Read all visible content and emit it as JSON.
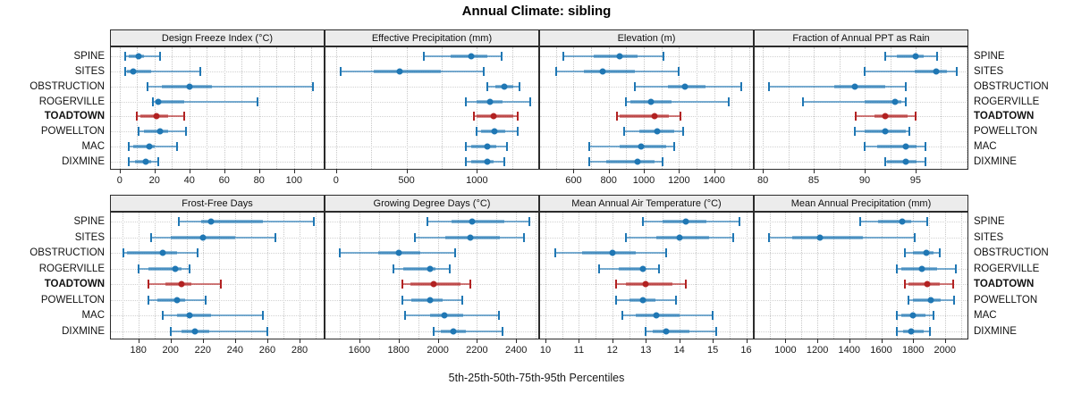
{
  "title": "Annual Climate: sibling",
  "caption": "5th-25th-50th-75th-95th Percentiles",
  "stations": [
    "SPINE",
    "SITES",
    "OBSTRUCTION",
    "ROGERVILLE",
    "TOADTOWN",
    "POWELLTON",
    "MAC",
    "DIXMINE"
  ],
  "highlight_station": "TOADTOWN",
  "percentile_labels": [
    "5th",
    "25th",
    "50th",
    "75th",
    "95th"
  ],
  "colors": {
    "series_blue": "#1f77b4",
    "highlight_red": "#b22222",
    "strip_bg": "#ececec",
    "panel_border": "#2b2b2b",
    "gridline": "#c8c8c8"
  },
  "chart_data": [
    {
      "type": "dot-interval",
      "title": "Design Freeze Index (°C)",
      "xlim": [
        -5,
        117
      ],
      "ticks": [
        0,
        20,
        40,
        60,
        80,
        100
      ],
      "values": [
        [
          3,
          5,
          11,
          14,
          23
        ],
        [
          3,
          4,
          8,
          18,
          46
        ],
        [
          16,
          24,
          40,
          53,
          111
        ],
        [
          19,
          21,
          22,
          37,
          79
        ],
        [
          10,
          12,
          21,
          28,
          37
        ],
        [
          11,
          14,
          23,
          28,
          38
        ],
        [
          5,
          8,
          17,
          20,
          33
        ],
        [
          5,
          9,
          15,
          18,
          22
        ]
      ]
    },
    {
      "type": "dot-interval",
      "title": "Effective Precipitation (mm)",
      "xlim": [
        -75,
        1435
      ],
      "ticks": [
        0,
        500,
        1000
      ],
      "values": [
        [
          620,
          810,
          960,
          1070,
          1175
        ],
        [
          30,
          270,
          450,
          745,
          1050
        ],
        [
          1070,
          1130,
          1195,
          1260,
          1300
        ],
        [
          920,
          995,
          1095,
          1185,
          1375
        ],
        [
          975,
          995,
          1120,
          1255,
          1290
        ],
        [
          1000,
          1030,
          1125,
          1200,
          1290
        ],
        [
          920,
          960,
          1075,
          1140,
          1215
        ],
        [
          920,
          960,
          1070,
          1120,
          1195
        ]
      ]
    },
    {
      "type": "dot-interval",
      "title": "Elevation (m)",
      "xlim": [
        410,
        1620
      ],
      "ticks": [
        600,
        800,
        1000,
        1200,
        1400
      ],
      "values": [
        [
          540,
          715,
          860,
          965,
          1110
        ],
        [
          500,
          660,
          765,
          950,
          1200
        ],
        [
          950,
          1135,
          1235,
          1350,
          1555
        ],
        [
          900,
          925,
          1040,
          1160,
          1480
        ],
        [
          845,
          860,
          1060,
          1140,
          1210
        ],
        [
          890,
          975,
          1075,
          1175,
          1225
        ],
        [
          690,
          860,
          985,
          1125,
          1170
        ],
        [
          690,
          785,
          965,
          1060,
          1105
        ]
      ]
    },
    {
      "type": "dot-interval",
      "title": "Fraction of Annual PPT as Rain",
      "xlim": [
        79.2,
        100.1
      ],
      "ticks": [
        80,
        85,
        90,
        95
      ],
      "values": [
        [
          92,
          93.2,
          95,
          95.8,
          97.1
        ],
        [
          90,
          94.9,
          97,
          98.1,
          99
        ],
        [
          80.6,
          87,
          89,
          92,
          94
        ],
        [
          83.9,
          90,
          93,
          93.6,
          94
        ],
        [
          89.1,
          91,
          92,
          94.2,
          95
        ],
        [
          89,
          90,
          92,
          94,
          94.4
        ],
        [
          90,
          91.2,
          94,
          95.1,
          96
        ],
        [
          92,
          92.2,
          94,
          95.1,
          96
        ]
      ]
    },
    {
      "type": "dot-interval",
      "title": "Frost-Free Days",
      "xlim": [
        163,
        295
      ],
      "ticks": [
        180,
        200,
        220,
        240,
        260,
        280
      ],
      "values": [
        [
          205,
          219,
          225,
          257,
          289
        ],
        [
          188,
          200,
          220,
          240,
          265
        ],
        [
          171,
          173,
          195,
          204,
          217
        ],
        [
          180,
          186,
          203,
          207,
          212
        ],
        [
          186,
          197,
          207,
          213,
          231
        ],
        [
          186,
          192,
          204,
          209,
          222
        ],
        [
          195,
          204,
          212,
          225,
          257
        ],
        [
          200,
          207,
          215,
          224,
          260
        ]
      ]
    },
    {
      "type": "dot-interval",
      "title": "Growing Degree Days (°C)",
      "xlim": [
        1427,
        2513
      ],
      "ticks": [
        1600,
        1800,
        2000,
        2200,
        2400
      ],
      "values": [
        [
          1947,
          2068,
          2174,
          2340,
          2465
        ],
        [
          1882,
          2038,
          2166,
          2317,
          2441
        ],
        [
          1500,
          1695,
          1800,
          1910,
          2090
        ],
        [
          1775,
          1825,
          1960,
          1990,
          2060
        ],
        [
          1820,
          1860,
          1980,
          2115,
          2165
        ],
        [
          1820,
          1865,
          1960,
          2025,
          2125
        ],
        [
          1835,
          1960,
          2035,
          2130,
          2310
        ],
        [
          1980,
          2015,
          2080,
          2145,
          2330
        ]
      ]
    },
    {
      "type": "dot-interval",
      "title": "Mean Annual Air Temperature (°C)",
      "xlim": [
        9.84,
        16.2
      ],
      "ticks": [
        10,
        11,
        12,
        13,
        14,
        15,
        16
      ],
      "values": [
        [
          12.9,
          13.5,
          14.2,
          14.8,
          15.8
        ],
        [
          12.4,
          13.3,
          14.0,
          14.9,
          15.6
        ],
        [
          10.3,
          11.1,
          12.0,
          12.7,
          13.6
        ],
        [
          11.6,
          12.2,
          12.9,
          13.0,
          13.4
        ],
        [
          12.1,
          12.4,
          13.0,
          13.8,
          14.2
        ],
        [
          12.1,
          12.5,
          12.9,
          13.3,
          13.9
        ],
        [
          12.3,
          12.7,
          13.3,
          14.0,
          15.0
        ],
        [
          13.0,
          13.2,
          13.6,
          14.3,
          15.1
        ]
      ]
    },
    {
      "type": "dot-interval",
      "title": "Mean Annual Precipitation (mm)",
      "xlim": [
        807,
        2141
      ],
      "ticks": [
        1000,
        1200,
        1400,
        1600,
        1800,
        2000
      ],
      "values": [
        [
          1470,
          1580,
          1730,
          1790,
          1890
        ],
        [
          896,
          1040,
          1215,
          1485,
          1810
        ],
        [
          1750,
          1800,
          1885,
          1930,
          1965
        ],
        [
          1700,
          1725,
          1855,
          1950,
          2070
        ],
        [
          1750,
          1770,
          1890,
          1965,
          2050
        ],
        [
          1770,
          1800,
          1910,
          1975,
          2055
        ],
        [
          1700,
          1725,
          1800,
          1875,
          1925
        ],
        [
          1700,
          1735,
          1790,
          1865,
          1905
        ]
      ]
    }
  ]
}
